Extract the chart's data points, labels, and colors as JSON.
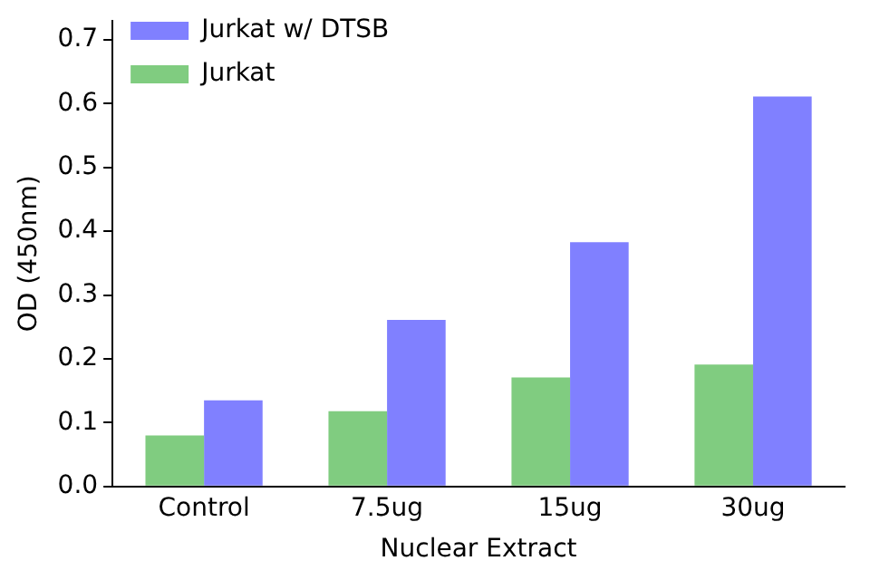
{
  "chart_data": {
    "type": "bar",
    "xlabel": "Nuclear Extract",
    "ylabel": "OD (450nm)",
    "categories": [
      "Control",
      "7.5ug",
      "15ug",
      "30ug"
    ],
    "series": [
      {
        "name": "Jurkat",
        "color": "#80cc80",
        "values": [
          0.08,
          0.118,
          0.171,
          0.191
        ]
      },
      {
        "name": "Jurkat w/ DTSB",
        "color": "#8080ff",
        "values": [
          0.135,
          0.261,
          0.383,
          0.611
        ]
      }
    ],
    "ylim": [
      0,
      0.73
    ],
    "yticks": [
      {
        "value": 0,
        "label": "0.0"
      },
      0.1,
      0.2,
      0.3,
      0.4,
      0.5,
      0.6,
      0.7
    ],
    "grid": false,
    "legend": "top left"
  }
}
